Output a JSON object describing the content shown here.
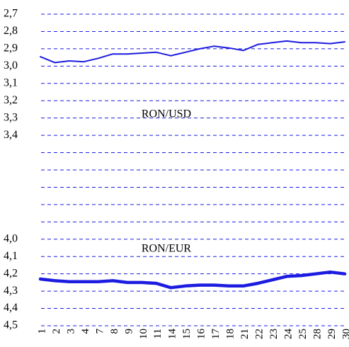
{
  "chart_data": {
    "type": "line",
    "categories": [
      "1",
      "2",
      "3",
      "4",
      "7",
      "8",
      "9",
      "10",
      "11",
      "14",
      "15",
      "16",
      "17",
      "18",
      "21",
      "22",
      "23",
      "24",
      "25",
      "28",
      "29",
      "30"
    ],
    "series": [
      {
        "name": "RON/USD",
        "color": "#1c1ce0",
        "line_width": 2,
        "values": [
          2.946,
          2.98,
          2.97,
          2.975,
          2.955,
          2.93,
          2.93,
          2.925,
          2.92,
          2.94,
          2.92,
          2.9,
          2.885,
          2.895,
          2.91,
          2.875,
          2.865,
          2.855,
          2.865,
          2.865,
          2.87,
          2.86
        ]
      },
      {
        "name": "RON/EUR",
        "color": "#1c1ce0",
        "line_width": 4.5,
        "values": [
          4.23,
          4.24,
          4.245,
          4.245,
          4.245,
          4.24,
          4.25,
          4.25,
          4.255,
          4.28,
          4.27,
          4.265,
          4.265,
          4.27,
          4.27,
          4.255,
          4.235,
          4.215,
          4.21,
          4.2,
          4.19,
          4.2
        ]
      }
    ],
    "ylim": [
      2.7,
      4.5
    ],
    "y_inverted": true,
    "grid": true,
    "yticks": [
      {
        "value": 2.7,
        "label": "2,7"
      },
      {
        "value": 2.8,
        "label": "2,8"
      },
      {
        "value": 2.9,
        "label": "2,9"
      },
      {
        "value": 3.0,
        "label": "3,0"
      },
      {
        "value": 3.1,
        "label": "3,1"
      },
      {
        "value": 3.2,
        "label": "3,2"
      },
      {
        "value": 3.3,
        "label": "3,3"
      },
      {
        "value": 3.4,
        "label": "3,4"
      },
      {
        "value": 3.5,
        "label": null
      },
      {
        "value": 3.6,
        "label": null
      },
      {
        "value": 3.7,
        "label": null
      },
      {
        "value": 3.8,
        "label": null
      },
      {
        "value": 3.9,
        "label": null
      },
      {
        "value": 4.0,
        "label": "4,0"
      },
      {
        "value": 4.1,
        "label": "4,1"
      },
      {
        "value": 4.2,
        "label": "4,2"
      },
      {
        "value": 4.3,
        "label": "4,3"
      },
      {
        "value": 4.4,
        "label": "4,4"
      },
      {
        "value": 4.5,
        "label": "4,5"
      }
    ]
  }
}
